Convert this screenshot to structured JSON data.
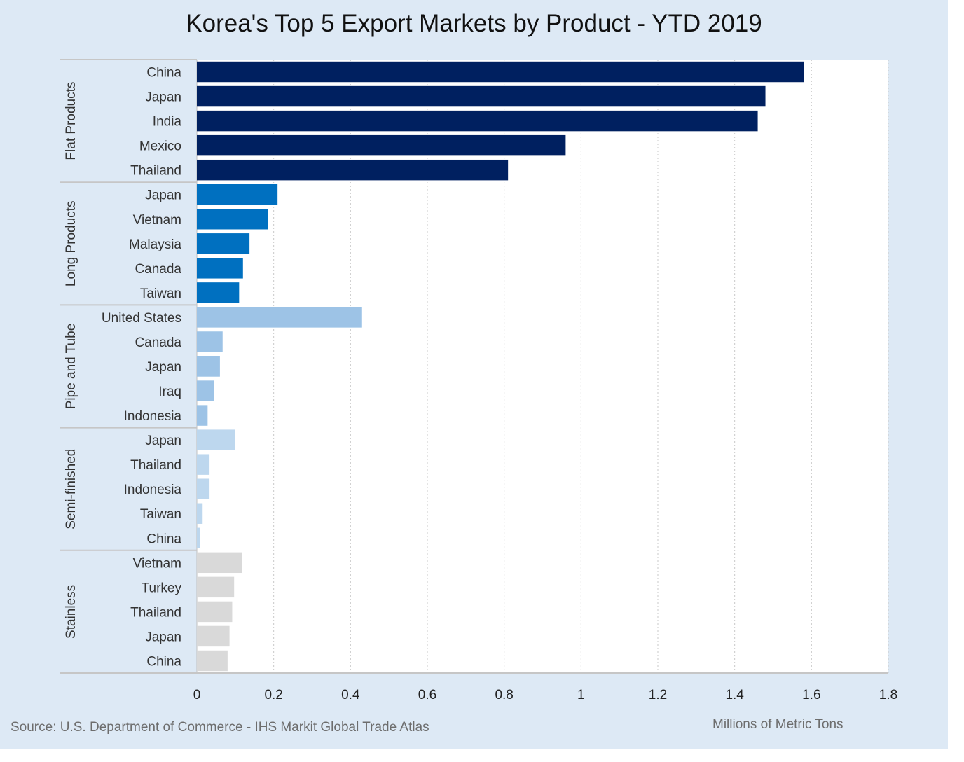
{
  "chart_data": {
    "type": "bar",
    "orientation": "horizontal",
    "title": "Korea's Top 5 Export Markets by Product - YTD 2019",
    "xlabel": "Millions of Metric Tons",
    "xlim": [
      0,
      1.8
    ],
    "xticks": [
      "0",
      "0.2",
      "0.4",
      "0.6",
      "0.8",
      "1",
      "1.2",
      "1.4",
      "1.6",
      "1.8"
    ],
    "grid": "vertical dashed",
    "source": "Source: U.S. Department of Commerce - IHS Markit Global Trade Atlas",
    "groups": [
      {
        "name": "Flat Products",
        "color": "#002060",
        "categories": [
          "China",
          "Japan",
          "India",
          "Mexico",
          "Thailand"
        ],
        "values": [
          1.58,
          1.48,
          1.46,
          0.96,
          0.81
        ]
      },
      {
        "name": "Long Products",
        "color": "#0070c0",
        "categories": [
          "Japan",
          "Vietnam",
          "Malaysia",
          "Canada",
          "Taiwan"
        ],
        "values": [
          0.21,
          0.185,
          0.137,
          0.12,
          0.11
        ]
      },
      {
        "name": "Pipe and Tube",
        "color": "#9dc3e6",
        "categories": [
          "United States",
          "Canada",
          "Japan",
          "Iraq",
          "Indonesia"
        ],
        "values": [
          0.43,
          0.067,
          0.06,
          0.045,
          0.028
        ]
      },
      {
        "name": "Semi-finished",
        "color": "#bdd7ee",
        "categories": [
          "Japan",
          "Thailand",
          "Indonesia",
          "Taiwan",
          "China"
        ],
        "values": [
          0.1,
          0.033,
          0.033,
          0.015,
          0.008
        ]
      },
      {
        "name": "Stainless",
        "color": "#d9d9d9",
        "categories": [
          "Vietnam",
          "Turkey",
          "Thailand",
          "Japan",
          "China"
        ],
        "values": [
          0.118,
          0.097,
          0.092,
          0.085,
          0.08
        ]
      }
    ]
  }
}
